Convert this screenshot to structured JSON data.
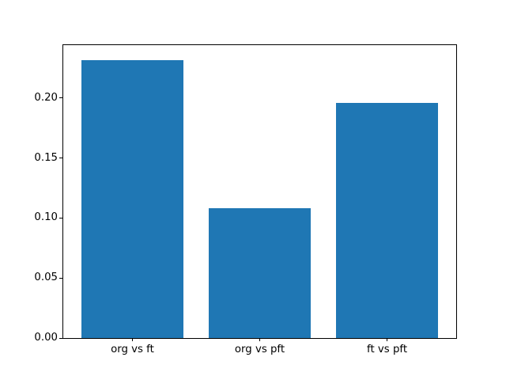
{
  "figure": {
    "background": "#ffffff"
  },
  "chart_data": {
    "type": "bar",
    "categories": [
      "org vs ft",
      "org vs pft",
      "ft vs pft"
    ],
    "values": [
      0.232,
      0.108,
      0.196
    ],
    "title": "",
    "xlabel": "",
    "ylabel": "",
    "xlim": [
      -0.543,
      2.543
    ],
    "ylim": [
      0,
      0.2442
    ],
    "bar_positions": [
      0,
      1,
      2
    ],
    "bar_width": 0.8,
    "bar_color": "#1f77b4",
    "yticks": [
      0.0,
      0.05,
      0.1,
      0.15,
      0.2
    ],
    "ytick_labels": [
      "0.00",
      "0.05",
      "0.10",
      "0.15",
      "0.20"
    ],
    "grid": false,
    "legend": null
  }
}
